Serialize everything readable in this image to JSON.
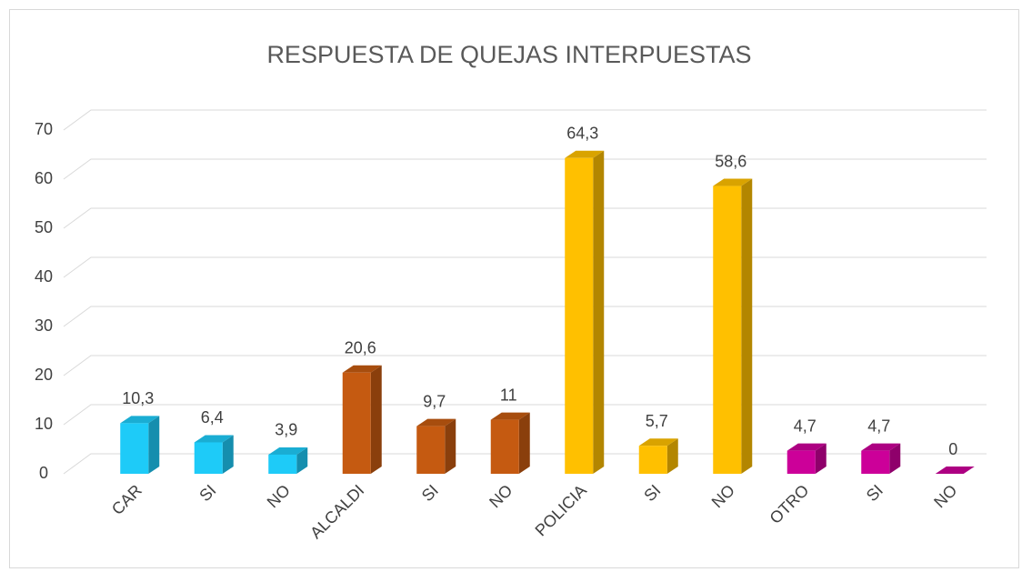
{
  "chart_data": {
    "type": "bar3d",
    "title": "RESPUESTA DE QUEJAS INTERPUESTAS",
    "categories": [
      "CAR",
      "SI",
      "NO",
      "ALCALDI",
      "SI",
      "NO",
      "POLICIA",
      "SI",
      "NO",
      "OTRO",
      "SI",
      "NO"
    ],
    "values": [
      10.3,
      6.4,
      3.9,
      20.6,
      9.7,
      11,
      64.3,
      5.7,
      58.6,
      4.7,
      4.7,
      0
    ],
    "value_labels": [
      "10,3",
      "6,4",
      "3,9",
      "20,6",
      "9,7",
      "11",
      "64,3",
      "5,7",
      "58,6",
      "4,7",
      "4,7",
      "0"
    ],
    "colors": [
      "#1ecbf8",
      "#1ecbf8",
      "#1ecbf8",
      "#c55a11",
      "#c55a11",
      "#c55a11",
      "#ffc000",
      "#ffc000",
      "#ffc000",
      "#cc0099",
      "#cc0099",
      "#cc0099"
    ],
    "ylim": [
      0,
      70
    ],
    "yticks": [
      0,
      10,
      20,
      30,
      40,
      50,
      60,
      70
    ],
    "grid": true
  }
}
